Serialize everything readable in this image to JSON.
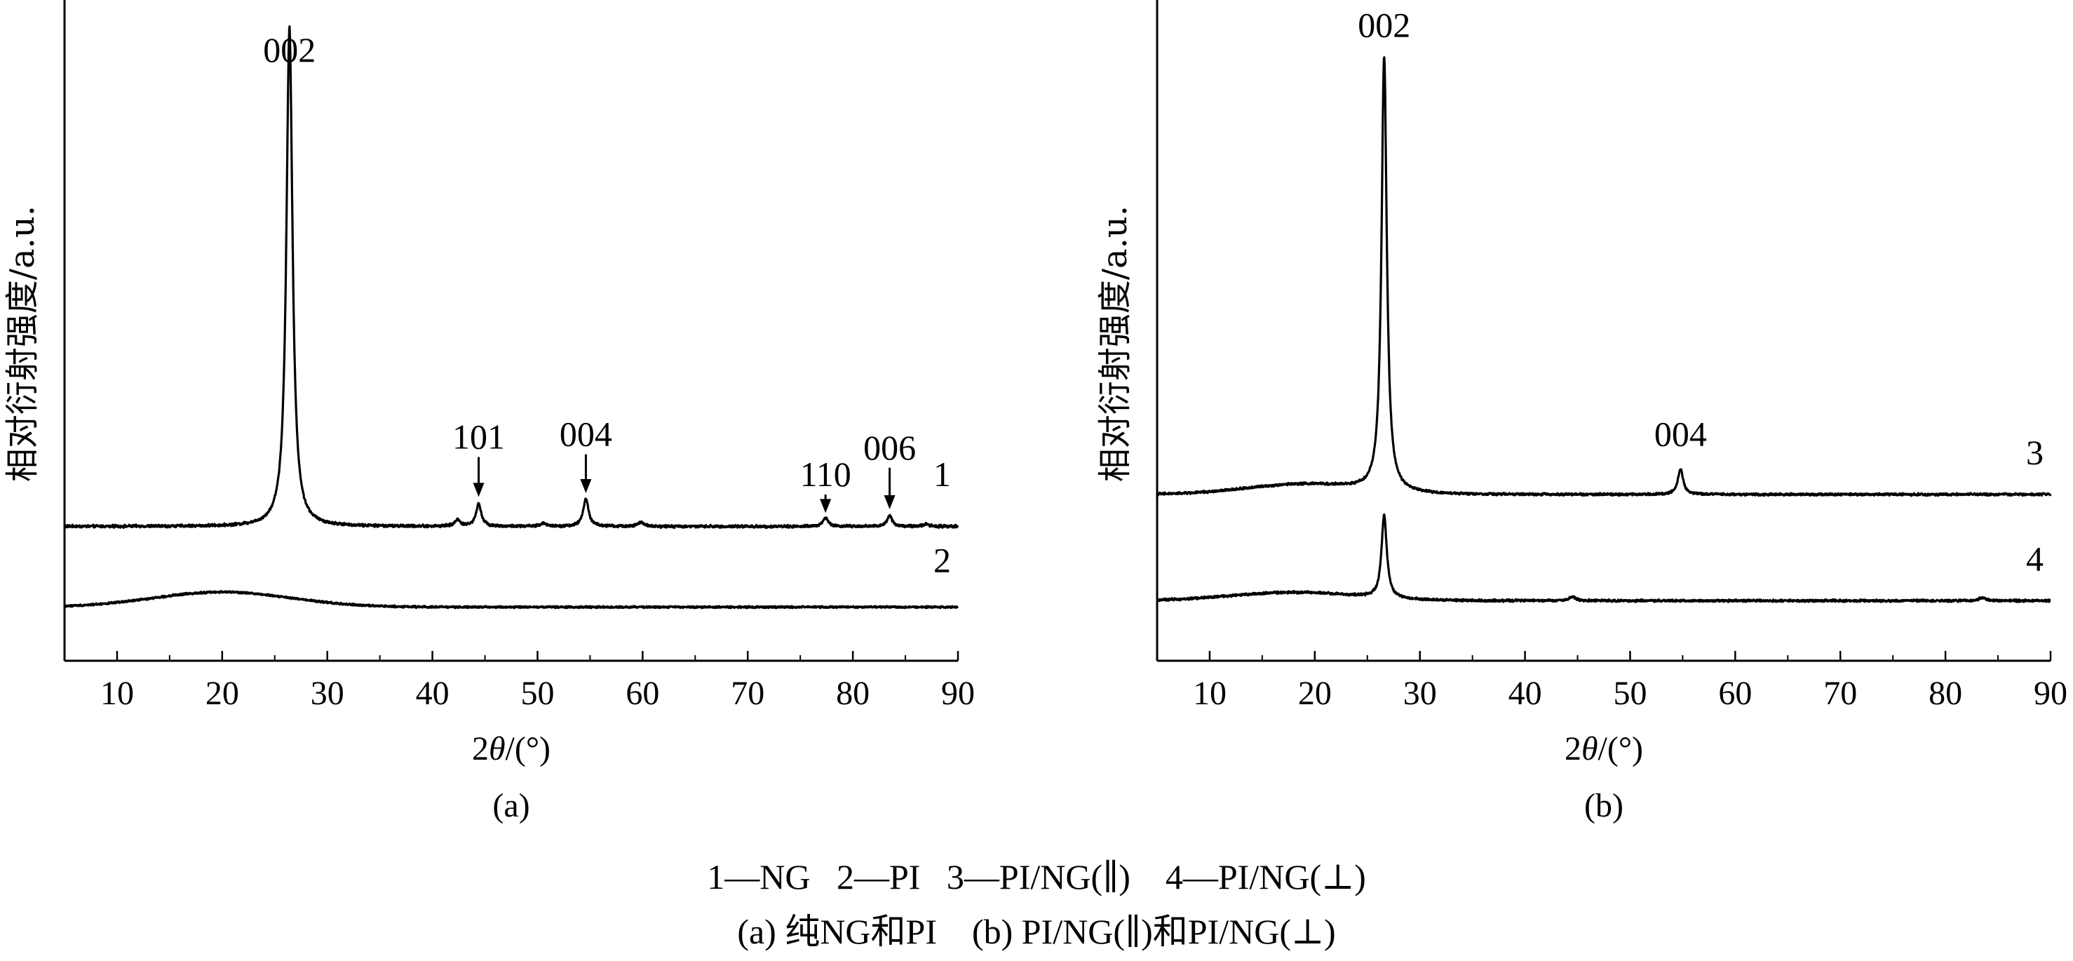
{
  "chart_data": [
    {
      "panel": "(a)",
      "type": "line",
      "xlabel_prefix": "2",
      "xlabel_symbol": "θ",
      "xlabel_suffix": "/(°)",
      "ylabel": "相对衍射强度/a.u.",
      "xlim": [
        5,
        90
      ],
      "x_ticks": [
        10,
        20,
        30,
        40,
        50,
        60,
        70,
        80,
        90
      ],
      "y_ticks": "none",
      "grid": false,
      "series": [
        {
          "name": "1",
          "baseline": 1.0,
          "noise": 0.03,
          "broad_humps": [],
          "peaks": [
            {
              "x": 26.4,
              "height": 9.3,
              "width": 0.35
            },
            {
              "x": 42.4,
              "height": 0.12,
              "width": 0.3
            },
            {
              "x": 44.4,
              "height": 0.42,
              "width": 0.3
            },
            {
              "x": 50.6,
              "height": 0.06,
              "width": 0.3
            },
            {
              "x": 54.6,
              "height": 0.52,
              "width": 0.3
            },
            {
              "x": 59.8,
              "height": 0.08,
              "width": 0.3
            },
            {
              "x": 77.4,
              "height": 0.16,
              "width": 0.3
            },
            {
              "x": 83.5,
              "height": 0.2,
              "width": 0.3
            },
            {
              "x": 87.0,
              "height": 0.05,
              "width": 0.3
            }
          ]
        },
        {
          "name": "2",
          "baseline": -0.5,
          "noise": 0.02,
          "broad_humps": [
            {
              "x": 20.0,
              "height": 0.28,
              "width": 6.5
            }
          ],
          "peaks": []
        }
      ],
      "annotations": [
        {
          "text": "002",
          "x": 26.4,
          "y": 9.65,
          "arrow": false
        },
        {
          "text": "101",
          "x": 44.4,
          "y": 2.45,
          "arrow": true,
          "arrow_to": 1.55
        },
        {
          "text": "004",
          "x": 54.6,
          "y": 2.5,
          "arrow": true,
          "arrow_to": 1.62
        },
        {
          "text": "110",
          "x": 77.4,
          "y": 1.75,
          "arrow": true,
          "arrow_to": 1.25
        },
        {
          "text": "006",
          "x": 83.5,
          "y": 2.25,
          "arrow": true,
          "arrow_to": 1.32
        }
      ],
      "curve_labels": [
        {
          "text": "1",
          "x": 88.5,
          "y": 1.75
        },
        {
          "text": "2",
          "x": 88.5,
          "y": 0.15
        }
      ],
      "panel_label": "(a)",
      "ylim": [
        -1.5,
        10.8
      ]
    },
    {
      "panel": "(b)",
      "type": "line",
      "xlabel_prefix": "2",
      "xlabel_symbol": "θ",
      "xlabel_suffix": "/(°)",
      "ylabel": "相对衍射强度/a.u.",
      "xlim": [
        5,
        90
      ],
      "x_ticks": [
        10,
        20,
        30,
        40,
        50,
        60,
        70,
        80,
        90
      ],
      "y_ticks": "none",
      "grid": false,
      "series": [
        {
          "name": "3",
          "baseline": 2.3,
          "noise": 0.03,
          "broad_humps": [
            {
              "x": 19.0,
              "height": 0.22,
              "width": 5.5
            }
          ],
          "peaks": [
            {
              "x": 26.6,
              "height": 9.4,
              "width": 0.3
            },
            {
              "x": 54.8,
              "height": 0.55,
              "width": 0.3
            }
          ]
        },
        {
          "name": "4",
          "baseline": 0.0,
          "noise": 0.03,
          "broad_humps": [
            {
              "x": 18.0,
              "height": 0.18,
              "width": 6.0
            }
          ],
          "peaks": [
            {
              "x": 26.6,
              "height": 1.8,
              "width": 0.3
            },
            {
              "x": 44.5,
              "height": 0.08,
              "width": 0.4
            },
            {
              "x": 83.5,
              "height": 0.06,
              "width": 0.4
            }
          ]
        }
      ],
      "annotations": [
        {
          "text": "002",
          "x": 26.6,
          "y": 12.2,
          "arrow": false
        },
        {
          "text": "004",
          "x": 54.8,
          "y": 3.35,
          "arrow": false
        }
      ],
      "curve_labels": [
        {
          "text": "3",
          "x": 88.5,
          "y": 2.95
        },
        {
          "text": "4",
          "x": 88.5,
          "y": 0.65
        }
      ],
      "panel_label": "(b)",
      "ylim": [
        -1.3,
        13.0
      ]
    }
  ],
  "captions": {
    "legend": "1—NG   2—PI   3—PI/NG(∥)    4—PI/NG(⊥)",
    "subcaption": "(a) 纯NG和PI    (b) PI/NG(∥)和PI/NG(⊥)"
  }
}
